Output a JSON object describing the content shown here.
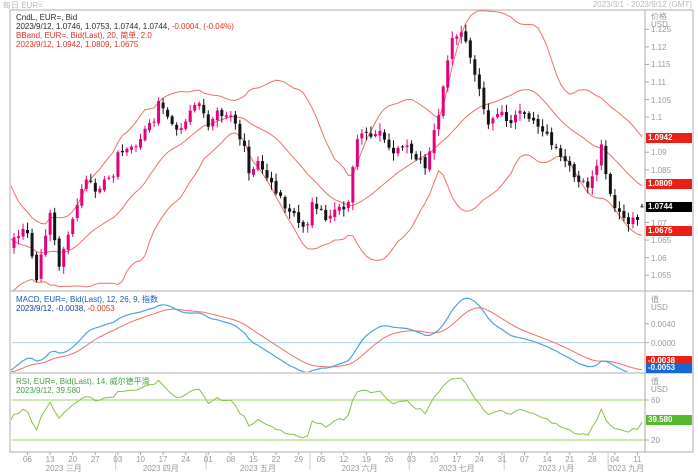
{
  "window": {
    "title_left": "每日 EUR=",
    "title_right": "2023/3/1 - 2023/9/12 (GMT)"
  },
  "legend_main": {
    "line1": "CndL, EUR=, Bid",
    "line2_values": "2023/9/12, 1.0746, 1.0753, 1.0744, 1.0744,",
    "line2_change": " -0.0004, (-0.04%)",
    "line3": "BBand, EUR=, Bid(Last), 20, 简单, 2.0",
    "line4": "2023/9/12, 1.0942, 1.0809, 1.0675"
  },
  "legend_macd": {
    "line1": "MACD, EUR=, Bid(Last), 12, 26, 9, 指数",
    "line2_date": "2023/9/12,",
    "line2_v1": " -0.0038,",
    "line2_v2": " -0.0053"
  },
  "legend_rsi": {
    "line1": "RSI, EUR=, Bid(Last), 14, 威尔德平滑",
    "line2": "2023/9/12, 39.580"
  },
  "badges": {
    "bb_upper": "1.0942",
    "bb_mid": "1.0809",
    "last": "1.0744",
    "bb_lower": "1.0675",
    "macd_signal": "-0.0038",
    "macd_line": "-0.0053",
    "rsi": "39.580"
  },
  "axes": {
    "price_title1": "价格",
    "price_title2": "USD",
    "macd_title1": "值",
    "macd_title2": "USD",
    "rsi_title1": "值",
    "rsi_title2": "USD"
  },
  "colors": {
    "candle_up": "#e5017d",
    "candle_down": "#141414",
    "bollinger": "#f07068",
    "macd_line": "#4aa5da",
    "macd_signal": "#f07068",
    "macd_zero": "#a8d5ec",
    "rsi_line": "#85c445",
    "rsi_band": "#9fd45f",
    "badge_red": "#e82015",
    "badge_black": "#000000",
    "badge_blue": "#1668d8",
    "badge_green": "#55b92e",
    "frame": "#adadad"
  },
  "xaxis": {
    "months": [
      {
        "label": "2023 三月",
        "center": 11,
        "days": [
          [
            "06",
            3
          ],
          [
            "13",
            8
          ],
          [
            "20",
            13
          ],
          [
            "27",
            18
          ]
        ]
      },
      {
        "label": "2023 四月",
        "center": 32.5,
        "days": [
          [
            "03",
            23
          ],
          [
            "10",
            28
          ],
          [
            "17",
            33
          ],
          [
            "24",
            38
          ]
        ]
      },
      {
        "label": "2023 五月",
        "center": 54,
        "days": [
          [
            "01",
            43
          ],
          [
            "08",
            48
          ],
          [
            "15",
            53
          ],
          [
            "22",
            58
          ],
          [
            "29",
            63
          ]
        ]
      },
      {
        "label": "2023 六月",
        "center": 76.5,
        "days": [
          [
            "05",
            68
          ],
          [
            "12",
            73
          ],
          [
            "19",
            78
          ],
          [
            "26",
            83
          ]
        ]
      },
      {
        "label": "2023 七月",
        "center": 98,
        "days": [
          [
            "03",
            88
          ],
          [
            "10",
            93
          ],
          [
            "17",
            98
          ],
          [
            "24",
            103
          ],
          [
            "31",
            108
          ]
        ]
      },
      {
        "label": "2023 八月",
        "center": 120,
        "days": [
          [
            "07",
            113
          ],
          [
            "14",
            118
          ],
          [
            "21",
            123
          ],
          [
            "28",
            128
          ]
        ]
      },
      {
        "label": "2023 九月",
        "center": 135.5,
        "days": [
          [
            "04",
            133
          ],
          [
            "11",
            138
          ]
        ]
      }
    ],
    "month_bounds": [
      22.5,
      42.5,
      65.5,
      87.5,
      108.5,
      131.5
    ]
  },
  "chart_data": {
    "type": "candlestick",
    "symbol": "EUR=",
    "source_field": "Bid",
    "interval": "daily",
    "date_range": "2023-03-01 to 2023-09-12",
    "last_candle": {
      "date": "2023/9/12",
      "open": 1.0746,
      "high": 1.0753,
      "low": 1.0744,
      "close": 1.0744,
      "change": -0.0004,
      "change_pct": "-0.04%"
    },
    "overlays": [
      {
        "name": "BBand",
        "period": 20,
        "method": "简单",
        "stdev": 2.0,
        "values": {
          "upper": 1.0942,
          "middle": 1.0809,
          "lower": 1.0675
        }
      }
    ],
    "panes": [
      {
        "name": "MACD",
        "params": [
          12,
          26,
          9
        ],
        "method": "指数",
        "values": {
          "signal": -0.0038,
          "macd": -0.0053
        },
        "axis": {
          "ticks": [
            0.004,
            0
          ],
          "min": -0.006,
          "max": 0.0105
        }
      },
      {
        "name": "RSI",
        "period": 14,
        "method": "威尔德平滑",
        "value": 39.58,
        "axis": {
          "ticks": [
            60,
            20
          ],
          "bands": [
            60,
            20
          ],
          "min": 10,
          "max": 85
        }
      }
    ],
    "price_axis": {
      "unit": "USD",
      "min": 1.0505,
      "max": 1.1305,
      "ticks": [
        1.125,
        1.12,
        1.115,
        1.11,
        1.105,
        1.1,
        1.09,
        1.085,
        1.07,
        1.065,
        1.06,
        1.055
      ]
    },
    "pre_days": 30,
    "num_days": 140,
    "close_path_anchors": [
      [
        -30,
        1.083
      ],
      [
        -27,
        1.087
      ],
      [
        -24,
        1.092
      ],
      [
        -19,
        1.079
      ],
      [
        -14,
        1.068
      ],
      [
        -9,
        1.062
      ],
      [
        -5,
        1.0545
      ],
      [
        -2,
        1.06
      ],
      [
        0,
        1.0665
      ],
      [
        3,
        1.068
      ],
      [
        5,
        1.0545
      ],
      [
        8,
        1.073
      ],
      [
        10,
        1.0577
      ],
      [
        13,
        1.072
      ],
      [
        16,
        1.083
      ],
      [
        18,
        1.0795
      ],
      [
        22,
        1.084
      ],
      [
        23,
        1.0905
      ],
      [
        27,
        1.092
      ],
      [
        31,
        1.0995
      ],
      [
        32,
        1.1045
      ],
      [
        34,
        1.0995
      ],
      [
        36,
        1.0955
      ],
      [
        40,
        1.104
      ],
      [
        42,
        1.102
      ],
      [
        43,
        1.098
      ],
      [
        45,
        1.101
      ],
      [
        48,
        1.1
      ],
      [
        51,
        1.0915
      ],
      [
        52,
        1.085
      ],
      [
        54,
        1.0875
      ],
      [
        57,
        1.0805
      ],
      [
        61,
        1.0725
      ],
      [
        65,
        1.069
      ],
      [
        66,
        1.0762
      ],
      [
        69,
        1.0712
      ],
      [
        74,
        1.0757
      ],
      [
        76,
        1.0945
      ],
      [
        81,
        1.0955
      ],
      [
        83,
        1.0905
      ],
      [
        87,
        1.091
      ],
      [
        89,
        1.088
      ],
      [
        91,
        1.0865
      ],
      [
        94,
        1.1005
      ],
      [
        97,
        1.1225
      ],
      [
        99,
        1.1245
      ],
      [
        102,
        1.113
      ],
      [
        105,
        1.098
      ],
      [
        108,
        1.1015
      ],
      [
        109,
        1.0985
      ],
      [
        112,
        1.101
      ],
      [
        116,
        1.098
      ],
      [
        120,
        1.0905
      ],
      [
        122,
        1.087
      ],
      [
        127,
        1.0795
      ],
      [
        129,
        1.087
      ],
      [
        130,
        1.092
      ],
      [
        131,
        1.0845
      ],
      [
        132,
        1.078
      ],
      [
        134,
        1.072
      ],
      [
        136,
        1.07
      ],
      [
        138,
        1.0715
      ],
      [
        139,
        1.0744
      ]
    ]
  }
}
